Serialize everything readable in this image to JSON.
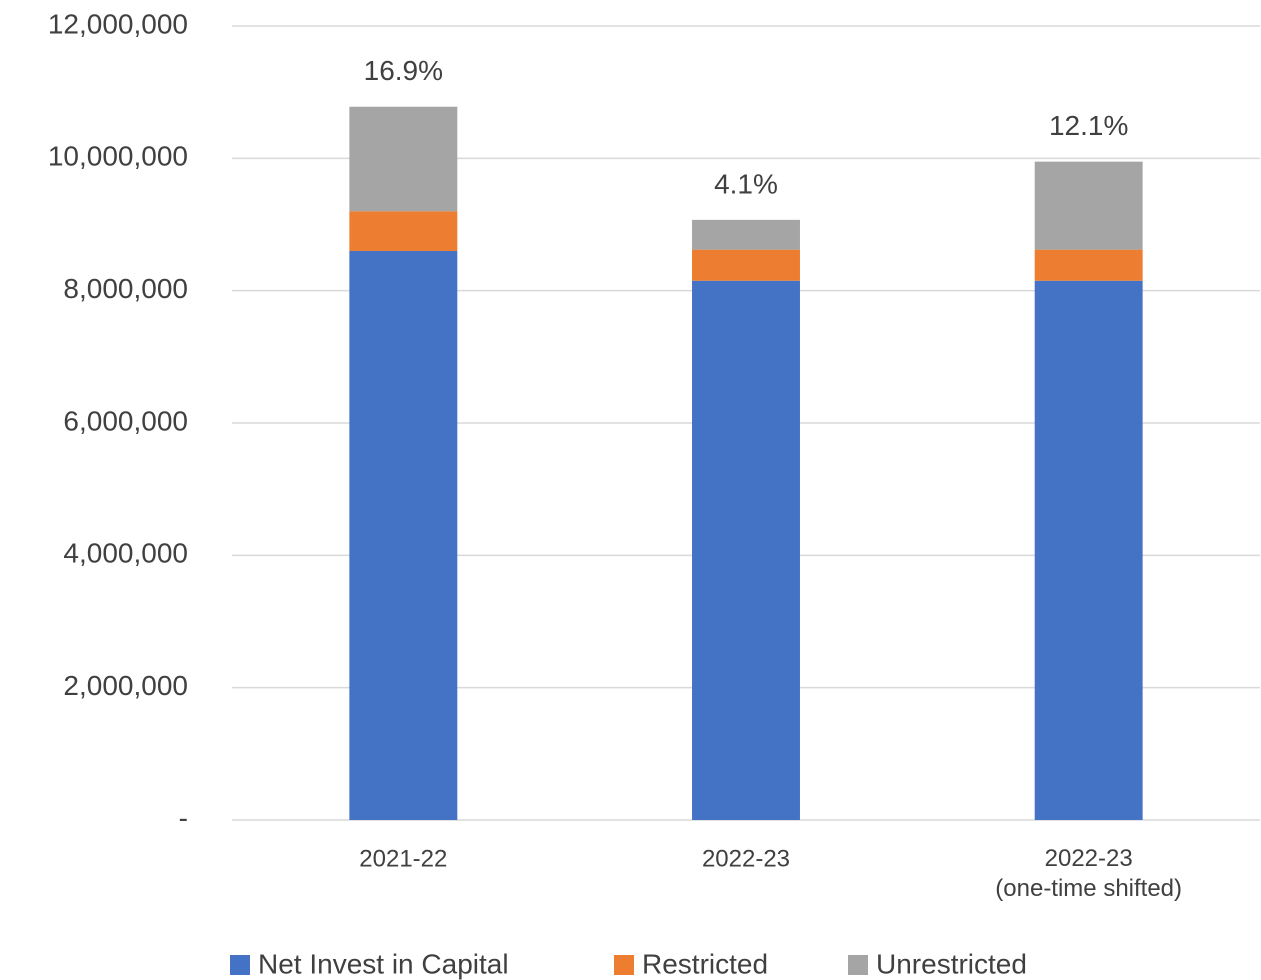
{
  "chart_data": {
    "type": "stacked_bar",
    "categories": [
      "2021-22",
      "2022-23",
      "2022-23\n(one-time shifted)"
    ],
    "series": [
      {
        "name": "Net Invest in Capital",
        "color": "#4472c4",
        "values": [
          8600000,
          8150000,
          8150000
        ]
      },
      {
        "name": "Restricted",
        "color": "#ed7d31",
        "values": [
          600000,
          470000,
          470000
        ]
      },
      {
        "name": "Unrestricted",
        "color": "#a5a5a5",
        "values": [
          1580000,
          450000,
          1330000
        ]
      }
    ],
    "annotations": [
      "16.9%",
      "4.1%",
      "12.1%"
    ],
    "ylim": [
      0,
      12000000
    ],
    "yticks": [
      {
        "value": 0,
        "label": "-"
      },
      {
        "value": 2000000,
        "label": "2,000,000"
      },
      {
        "value": 4000000,
        "label": "4,000,000"
      },
      {
        "value": 6000000,
        "label": "6,000,000"
      },
      {
        "value": 8000000,
        "label": "8,000,000"
      },
      {
        "value": 10000000,
        "label": "10,000,000"
      },
      {
        "value": 12000000,
        "label": "12,000,000"
      }
    ],
    "grid": true,
    "legend": "bottom"
  }
}
